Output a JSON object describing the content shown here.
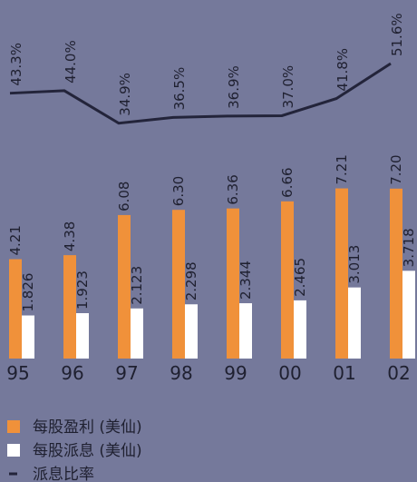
{
  "chart_data": {
    "type": "bar_line",
    "categories": [
      "95",
      "96",
      "97",
      "98",
      "99",
      "00",
      "01",
      "02"
    ],
    "series": [
      {
        "name": "每股盈利 (美仙)",
        "color": "#f0913a",
        "type": "bar",
        "values": [
          4.21,
          4.38,
          6.08,
          6.3,
          6.36,
          6.66,
          7.21,
          7.2
        ],
        "value_labels": [
          "4.21",
          "4.38",
          "6.08",
          "6.30",
          "6.36",
          "6.66",
          "7.21",
          "7.20"
        ]
      },
      {
        "name": "每股派息 (美仙)",
        "color": "#ffffff",
        "type": "bar",
        "values": [
          1.826,
          1.923,
          2.123,
          2.298,
          2.344,
          2.465,
          3.013,
          3.718
        ]
      },
      {
        "name": "派息比率",
        "color": "#23243a",
        "type": "line",
        "axis": "y2",
        "values": [
          43.3,
          44.0,
          34.9,
          36.5,
          36.9,
          37.0,
          41.8,
          51.6
        ],
        "value_labels": [
          "43.3%",
          "44.0%",
          "34.9%",
          "36.5%",
          "36.9%",
          "37.0%",
          "41.8%",
          "51.6%"
        ]
      }
    ],
    "ylim": [
      0,
      8
    ],
    "y2lim": [
      0,
      60
    ]
  }
}
